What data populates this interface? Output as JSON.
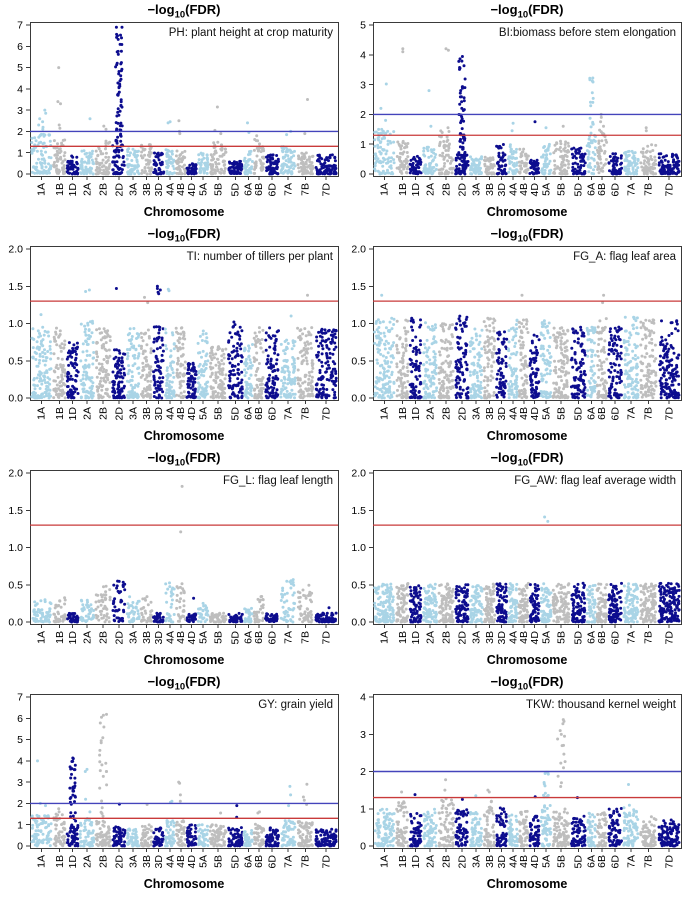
{
  "page": {
    "title_prefix": "−log",
    "title_sub": "10",
    "title_suffix": "(FDR)",
    "xlabel": "Chromosome"
  },
  "colors": {
    "lightblue": "#A9D4E6",
    "gray": "#BEBEBE",
    "navy": "#0D0D8F",
    "red_line": "#C93A3A",
    "blue_line": "#4444BB",
    "box": "#3a3a3a",
    "text": "#000000"
  },
  "chromosomes": [
    "1A",
    "1B",
    "1D",
    "2A",
    "2B",
    "2D",
    "3A",
    "3B",
    "3D",
    "4A",
    "4B",
    "4D",
    "5A",
    "5B",
    "5D",
    "6A",
    "6B",
    "6D",
    "7A",
    "7B",
    "7D"
  ],
  "chrom_weights": [
    2.1,
    1.25,
    1.2,
    1.45,
    1.55,
    1.35,
    1.3,
    1.15,
    1.1,
    1.0,
    1.0,
    1.0,
    1.1,
    1.7,
    1.5,
    0.9,
    1.05,
    1.4,
    1.55,
    1.65,
    2.2
  ],
  "chart_data": [
    {
      "type": "scatter",
      "subtype": "manhattan",
      "title": "-log10(FDR)",
      "label": "PH: plant height at crop maturity",
      "xlabel": "Chromosome",
      "ylim": [
        0,
        7
      ],
      "yticks": [
        "0",
        "1",
        "2",
        "3",
        "4",
        "5",
        "6",
        "7"
      ],
      "red_line": 1.3,
      "blue_line": 2.0,
      "point_density": 55,
      "bulk_max": [
        1.9,
        1.6,
        0.9,
        1.1,
        1.6,
        1.6,
        1.2,
        1.5,
        1.0,
        1.2,
        1.1,
        0.5,
        1.0,
        1.5,
        0.6,
        1.1,
        1.7,
        0.9,
        1.3,
        1.0,
        0.9
      ],
      "columns": [
        {
          "chrom": "2D",
          "from": 0.8,
          "to": 7.0,
          "n": 65
        }
      ],
      "peaks": {
        "1A": [
          3.0,
          2.85,
          2.6,
          2.45,
          2.3,
          2.2,
          2.1
        ],
        "1B": [
          5.0,
          3.4,
          3.3,
          2.3,
          2.15
        ],
        "2A": [
          2.6
        ],
        "2B": [
          2.25,
          2.1
        ],
        "4A": [
          2.45,
          2.4
        ],
        "4B": [
          2.5,
          2.0,
          1.9
        ],
        "5B": [
          3.15,
          2.05,
          1.9
        ],
        "6A": [
          2.4,
          1.95
        ],
        "6B": [
          1.8
        ],
        "7A": [
          2.0,
          1.85
        ],
        "7B": [
          3.5,
          1.9
        ]
      }
    },
    {
      "type": "scatter",
      "subtype": "manhattan",
      "title": "-log10(FDR)",
      "label": "BI:biomass before stem elongation",
      "xlabel": "Chromosome",
      "ylim": [
        0,
        5
      ],
      "yticks": [
        "0",
        "1",
        "2",
        "3",
        "4",
        "5"
      ],
      "red_line": 1.3,
      "blue_line": 2.0,
      "point_density": 55,
      "bulk_max": [
        1.5,
        1.1,
        0.6,
        0.9,
        1.5,
        0.7,
        0.6,
        0.6,
        1.0,
        1.0,
        0.9,
        0.5,
        1.0,
        1.1,
        0.9,
        1.3,
        1.5,
        0.7,
        0.8,
        1.0,
        0.7
      ],
      "columns": [
        {
          "chrom": "2D",
          "from": 0.6,
          "to": 4.2,
          "n": 55
        },
        {
          "chrom": "6A",
          "from": 1.2,
          "to": 3.25,
          "n": 16
        }
      ],
      "peaks": {
        "1A": [
          3.02,
          2.2,
          1.8
        ],
        "1B": [
          4.2,
          4.1
        ],
        "2A": [
          2.8,
          1.6
        ],
        "2B": [
          4.2,
          4.15,
          1.55
        ],
        "4A": [
          1.7,
          1.45
        ],
        "4D": [
          1.75
        ],
        "5A": [
          1.55
        ],
        "5B": [
          1.6
        ],
        "6B": [
          2.0,
          1.9,
          1.75,
          1.6
        ],
        "7B": [
          1.55,
          1.45
        ]
      }
    },
    {
      "type": "scatter",
      "subtype": "manhattan",
      "title": "-log10(FDR)",
      "label": "TI: number of tillers per plant",
      "xlabel": "Chromosome",
      "ylim": [
        0,
        2
      ],
      "yticks": [
        "0.0",
        "0.5",
        "1.0",
        "1.5",
        "2.0"
      ],
      "red_line": 1.3,
      "blue_line": null,
      "point_density": 85,
      "bulk_max": [
        0.95,
        0.95,
        0.75,
        1.05,
        0.95,
        0.65,
        0.95,
        0.95,
        1.0,
        0.95,
        0.95,
        0.5,
        0.9,
        0.7,
        1.0,
        0.75,
        0.95,
        0.95,
        0.8,
        0.95,
        0.95
      ],
      "columns": [],
      "peaks": {
        "1A": [
          1.12
        ],
        "2A": [
          1.45,
          1.43
        ],
        "2D": [
          1.47
        ],
        "3B": [
          1.35,
          1.28
        ],
        "3D": [
          1.5,
          1.47,
          1.45,
          1.42,
          1.4
        ],
        "4A": [
          1.46,
          1.44
        ],
        "5D": [
          1.02
        ],
        "7A": [
          1.1
        ],
        "7B": [
          1.38
        ]
      }
    },
    {
      "type": "scatter",
      "subtype": "manhattan",
      "title": "-log10(FDR)",
      "label": "FG_A: flag leaf area",
      "xlabel": "Chromosome",
      "ylim": [
        0,
        2
      ],
      "yticks": [
        "0.0",
        "0.5",
        "1.0",
        "1.5",
        "2.0"
      ],
      "red_line": 1.3,
      "blue_line": null,
      "point_density": 90,
      "bulk_max": [
        1.1,
        1.05,
        1.1,
        1.05,
        1.0,
        1.1,
        0.95,
        1.1,
        0.9,
        1.1,
        1.1,
        0.85,
        1.05,
        0.95,
        0.95,
        0.95,
        1.1,
        1.0,
        1.1,
        1.05,
        1.05
      ],
      "columns": [],
      "peaks": {
        "1A": [
          1.38
        ],
        "4B": [
          1.38
        ],
        "6B": [
          1.38,
          1.28
        ]
      }
    },
    {
      "type": "scatter",
      "subtype": "manhattan",
      "title": "-log10(FDR)",
      "label": "FG_L: flag leaf length",
      "xlabel": "Chromosome",
      "ylim": [
        0,
        2
      ],
      "yticks": [
        "0.0",
        "0.5",
        "1.0",
        "1.5",
        "2.0"
      ],
      "red_line": 1.3,
      "blue_line": null,
      "point_density": 40,
      "bulk_max": [
        0.3,
        0.35,
        0.12,
        0.3,
        0.5,
        0.57,
        0.35,
        0.35,
        0.12,
        0.55,
        0.57,
        0.12,
        0.25,
        0.12,
        0.12,
        0.2,
        0.38,
        0.12,
        0.57,
        0.5,
        0.12
      ],
      "columns": [],
      "peaks": {
        "4B": [
          1.82,
          1.21
        ],
        "4D": [
          0.32
        ],
        "7D": [
          0.19
        ]
      }
    },
    {
      "type": "scatter",
      "subtype": "manhattan",
      "title": "-log10(FDR)",
      "label": "FG_AW: flag leaf average width",
      "xlabel": "Chromosome",
      "ylim": [
        0,
        2
      ],
      "yticks": [
        "0.0",
        "0.5",
        "1.0",
        "1.5",
        "2.0"
      ],
      "red_line": 1.3,
      "blue_line": null,
      "point_density": 85,
      "bulk_max": [
        0.52,
        0.52,
        0.52,
        0.52,
        0.52,
        0.52,
        0.52,
        0.52,
        0.52,
        0.52,
        0.52,
        0.52,
        0.52,
        0.52,
        0.52,
        0.52,
        0.52,
        0.52,
        0.52,
        0.52,
        0.52
      ],
      "columns": [],
      "peaks": {
        "5A": [
          1.41,
          1.35
        ]
      }
    },
    {
      "type": "scatter",
      "subtype": "manhattan",
      "title": "-log10(FDR)",
      "label": "GY: grain yield",
      "xlabel": "Chromosome",
      "ylim": [
        0,
        7
      ],
      "yticks": [
        "0",
        "1",
        "2",
        "3",
        "4",
        "5",
        "6",
        "7"
      ],
      "red_line": 1.3,
      "blue_line": 2.0,
      "point_density": 55,
      "bulk_max": [
        1.5,
        1.5,
        1.0,
        1.3,
        1.2,
        0.9,
        0.8,
        1.0,
        0.9,
        1.2,
        1.2,
        1.0,
        1.0,
        1.0,
        0.9,
        0.8,
        1.2,
        0.9,
        1.2,
        1.2,
        0.8
      ],
      "columns": [
        {
          "chrom": "1D",
          "from": 0.4,
          "to": 4.2,
          "n": 42
        },
        {
          "chrom": "2B",
          "from": 1.4,
          "to": 6.5,
          "n": 24
        }
      ],
      "peaks": {
        "1A": [
          4.0,
          2.0,
          1.9
        ],
        "1B": [
          1.75,
          1.6
        ],
        "2A": [
          3.6,
          3.5,
          2.2,
          1.6
        ],
        "2D": [
          1.97
        ],
        "3B": [
          1.95
        ],
        "4A": [
          2.1,
          2.05
        ],
        "4B": [
          3.0,
          2.95,
          2.4,
          2.1
        ],
        "5B": [
          1.55
        ],
        "5D": [
          1.9,
          1.35
        ],
        "6B": [
          1.6,
          1.55
        ],
        "7A": [
          2.8,
          2.4,
          1.9
        ],
        "7B": [
          2.9,
          2.3,
          2.15,
          1.95
        ]
      }
    },
    {
      "type": "scatter",
      "subtype": "manhattan",
      "title": "-log10(FDR)",
      "label": "TKW: thousand kernel weight",
      "xlabel": "Chromosome",
      "ylim": [
        0,
        4
      ],
      "yticks": [
        "0",
        "1",
        "2",
        "3",
        "4"
      ],
      "red_line": 1.3,
      "blue_line": 2.0,
      "point_density": 65,
      "bulk_max": [
        1.0,
        1.2,
        0.9,
        1.0,
        1.3,
        1.0,
        0.9,
        1.3,
        1.1,
        0.9,
        1.0,
        0.8,
        1.1,
        1.0,
        0.8,
        0.9,
        0.9,
        1.05,
        1.1,
        0.8,
        0.7
      ],
      "columns": [
        {
          "chrom": "5B",
          "from": 1.5,
          "to": 3.8,
          "n": 16
        },
        {
          "chrom": "5A",
          "from": 1.3,
          "to": 2.3,
          "n": 12
        }
      ],
      "peaks": {
        "1B": [
          1.45
        ],
        "1D": [
          1.38
        ],
        "2B": [
          1.78,
          1.5
        ],
        "2D": [
          1.25
        ],
        "3A": [
          1.35
        ],
        "3B": [
          1.5,
          1.45
        ],
        "4D": [
          1.32
        ],
        "5D": [
          1.3
        ],
        "7A": [
          1.65
        ]
      }
    }
  ]
}
